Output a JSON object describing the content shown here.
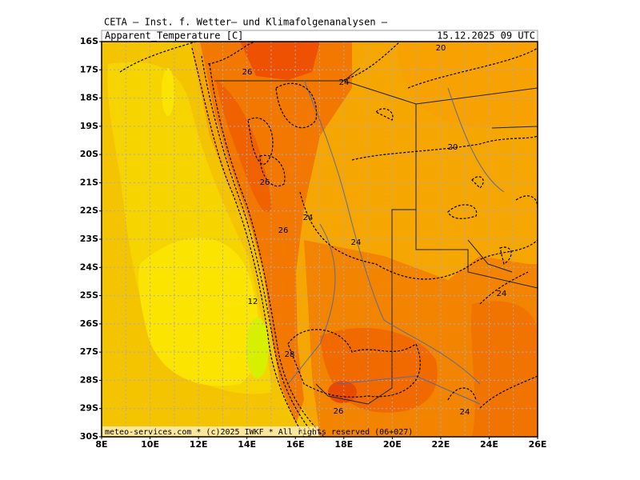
{
  "header": {
    "title": "CETA – Inst. f. Wetter– und Klimafolgenanalysen –",
    "field": "Apparent_Temperature [C]",
    "valid_time": "15.12.2025 09 UTC"
  },
  "axes": {
    "lat_labels": [
      "16S",
      "17S",
      "18S",
      "19S",
      "20S",
      "21S",
      "22S",
      "23S",
      "24S",
      "25S",
      "26S",
      "27S",
      "28S",
      "29S",
      "30S"
    ],
    "lon_labels": [
      "8E",
      "10E",
      "12E",
      "14E",
      "16E",
      "18E",
      "20E",
      "22E",
      "24E",
      "26E"
    ]
  },
  "contour_labels": [
    "26",
    "24",
    "20",
    "20",
    "26",
    "24",
    "26",
    "24",
    "24",
    "12",
    "28",
    "26",
    "24"
  ],
  "footer": "meteo-services.com * (c)2025 IWKF * All rights reserved (06+027)"
}
